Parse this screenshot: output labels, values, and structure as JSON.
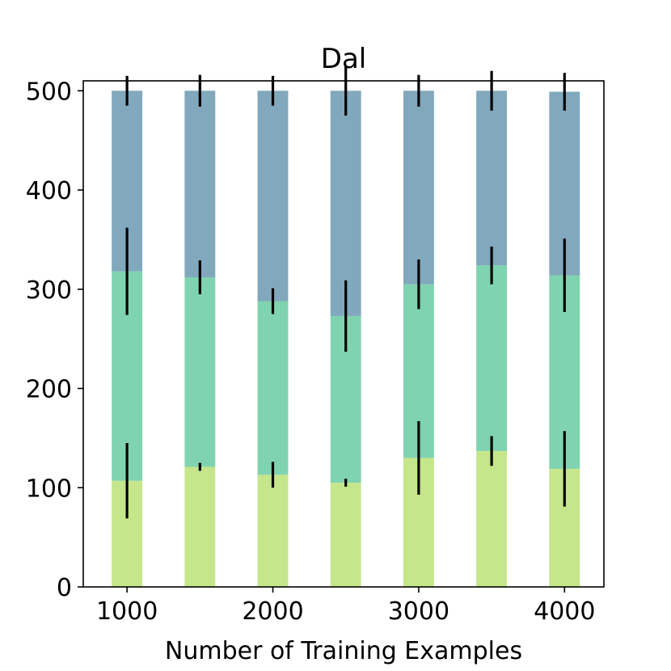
{
  "chart_data": {
    "type": "bar",
    "stacked": true,
    "title": "Dal",
    "xlabel": "Number of Training Examples",
    "ylabel": "",
    "x": [
      1000,
      1500,
      2000,
      2500,
      3000,
      3500,
      4000
    ],
    "x_ticks": [
      "1000",
      "2000",
      "3000",
      "4000"
    ],
    "x_tick_values": [
      1000,
      2000,
      3000,
      4000
    ],
    "xlim": [
      700,
      4270
    ],
    "ylim": [
      0,
      510
    ],
    "y_ticks": [
      "0",
      "100",
      "200",
      "300",
      "400",
      "500"
    ],
    "y_tick_values": [
      0,
      100,
      200,
      300,
      400,
      500
    ],
    "bar_width": 210,
    "grid": false,
    "legend": false,
    "series": [
      {
        "color": "#c5e68b",
        "values": [
          107,
          121,
          113,
          105,
          130,
          137,
          119
        ],
        "errors": [
          38,
          4,
          13,
          4,
          37,
          15,
          38
        ]
      },
      {
        "color": "#80d3b0",
        "values": [
          211,
          191,
          175,
          168,
          175,
          187,
          195
        ],
        "errors": [
          44,
          17,
          13,
          36,
          25,
          19,
          37
        ]
      },
      {
        "color": "#81a8bd",
        "values": [
          182,
          188,
          212,
          227,
          195,
          176,
          185
        ],
        "errors": [
          15,
          16,
          15,
          25,
          16,
          20,
          19
        ]
      }
    ]
  }
}
